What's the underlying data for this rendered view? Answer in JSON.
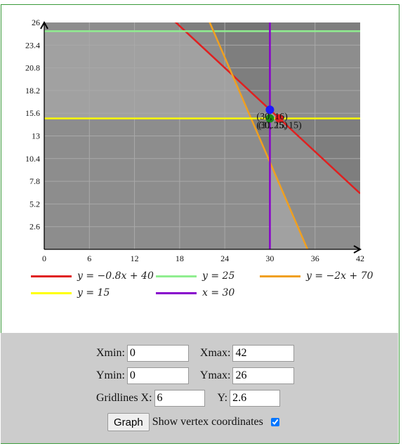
{
  "chart_data": {
    "type": "line",
    "xlim": [
      0,
      42
    ],
    "ylim": [
      0,
      26
    ],
    "x_ticks": [
      "0",
      "6",
      "12",
      "18",
      "24",
      "30",
      "36",
      "42"
    ],
    "y_ticks": [
      "2.6",
      "5.2",
      "7.8",
      "10.4",
      "13",
      "15.6",
      "18.2",
      "20.8",
      "23.4",
      "26"
    ],
    "grid": true,
    "series": [
      {
        "name": "y = −0.8x + 40",
        "color": "#e02020",
        "kind": "line",
        "m": -0.8,
        "b": 40
      },
      {
        "name": "y = 25",
        "color": "#90ee90",
        "kind": "line",
        "m": 0,
        "b": 25
      },
      {
        "name": "y = −2x + 70",
        "color": "#f0a020",
        "kind": "line",
        "m": -2,
        "b": 70
      },
      {
        "name": "y = 15",
        "color": "#ffff00",
        "kind": "line",
        "m": 0,
        "b": 15
      },
      {
        "name": "x = 30",
        "color": "#8800cc",
        "kind": "vline",
        "x": 30
      }
    ],
    "vertices": [
      {
        "x": 30,
        "y": 16,
        "color": "#1a1aff",
        "label": "(30, 16)"
      },
      {
        "x": 31.25,
        "y": 15,
        "color": "#e02020",
        "label": "(31.25, 15)"
      },
      {
        "x": 30,
        "y": 15,
        "color": "#1a8a1a",
        "label": "(30, 15)"
      }
    ]
  },
  "controls": {
    "xmin_label": "Xmin:",
    "xmin_value": "0",
    "xmax_label": "Xmax:",
    "xmax_value": "42",
    "ymin_label": "Ymin:",
    "ymin_value": "0",
    "ymax_label": "Ymax:",
    "ymax_value": "26",
    "gridx_label": "Gridlines X:",
    "gridx_value": "6",
    "gridy_label": "Y:",
    "gridy_value": "2.6",
    "graph_button": "Graph",
    "vertex_label": "Show vertex coordinates",
    "vertex_checked": true
  }
}
